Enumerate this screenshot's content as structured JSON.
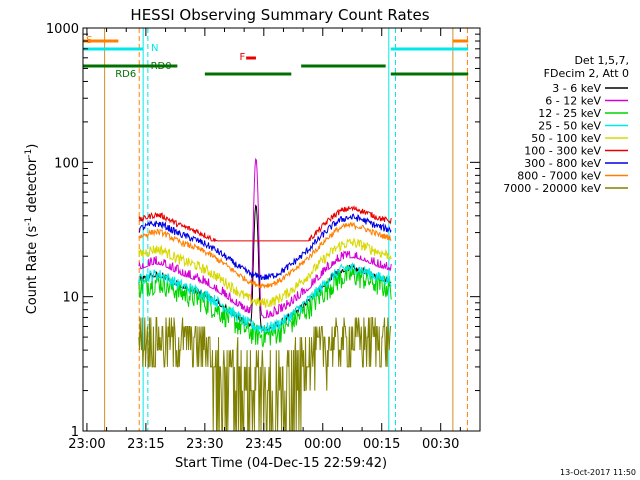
{
  "chart_data": {
    "type": "line",
    "title": "HESSI Observing Summary Count Rates",
    "xlabel": "Start Time (04-Dec-15 22:59:42)",
    "ylabel_main": "Count Rate (s",
    "ylabel_sup1": "-1",
    "ylabel_mid": " detector",
    "ylabel_sup2": "-1",
    "ylabel_end": ")",
    "timestamp": "13-Oct-2017 11:50",
    "y_scale": "log",
    "ylim": [
      1,
      1000
    ],
    "xlim_minutes_after_23_00": [
      -1,
      100
    ],
    "x_ticks": [
      {
        "label": "23:00",
        "t": 0
      },
      {
        "label": "23:15",
        "t": 15
      },
      {
        "label": "23:30",
        "t": 30
      },
      {
        "label": "23:45",
        "t": 45
      },
      {
        "label": "00:00",
        "t": 60
      },
      {
        "label": "00:15",
        "t": 75
      },
      {
        "label": "00:30",
        "t": 90
      }
    ],
    "y_ticks": [
      {
        "label": "1",
        "v": 1
      },
      {
        "label": "10",
        "v": 10
      },
      {
        "label": "100",
        "v": 100
      },
      {
        "label": "1000",
        "v": 1000
      }
    ],
    "legend_header": [
      "Det 1,5,7,",
      "FDecim 2, Att 0"
    ],
    "legend_placement": "right",
    "series": [
      {
        "name": "3 - 6 keV",
        "color": "#000000",
        "base": 12.5,
        "noise": 0.1
      },
      {
        "name": "6 - 12 keV",
        "color": "#d400d4",
        "base": 15.5,
        "noise": 0.16
      },
      {
        "name": "12 - 25 keV",
        "color": "#00d400",
        "base": 11.5,
        "noise": 0.2
      },
      {
        "name": "25 - 50 keV",
        "color": "#00e8e8",
        "base": 13.0,
        "noise": 0.1
      },
      {
        "name": "50 - 100 keV",
        "color": "#d8d800",
        "base": 20.0,
        "noise": 0.09
      },
      {
        "name": "100 - 300 keV",
        "color": "#e80000",
        "base": 36.0,
        "noise": 0.05
      },
      {
        "name": "300 - 800 keV",
        "color": "#0000e0",
        "base": 31.0,
        "noise": 0.06
      },
      {
        "name": "800 - 7000 keV",
        "color": "#ff8000",
        "base": 27.0,
        "noise": 0.05
      },
      {
        "name": "7000 - 20000 keV",
        "color": "#808000",
        "base": 4.5,
        "noise": 0.2
      }
    ],
    "data_window_minutes": [
      13.2,
      77.4
    ],
    "flare_peak": {
      "t": 43.0,
      "value_6_12_keV": 115,
      "value_3_6_keV": 55
    },
    "flag_labels": {
      "saa": "S",
      "night": "N",
      "flare": "F",
      "rd0": "RD0",
      "rd6": "RD6"
    },
    "flag_segments": {
      "saa": [
        [
          -1,
          8
        ],
        [
          93,
          97
        ]
      ],
      "night": [
        [
          -1,
          14.2
        ],
        [
          77.3,
          97
        ]
      ],
      "flare": [
        [
          40.5,
          43
        ]
      ],
      "decimation": [
        [
          -1,
          23
        ],
        [
          30,
          52
        ],
        [
          54.5,
          76
        ],
        [
          77.3,
          97
        ]
      ]
    },
    "vertical_markers": [
      {
        "t": 4.5,
        "style": "solid",
        "color": "#d09020"
      },
      {
        "t": 13.3,
        "style": "dashed",
        "color": "#ff8000"
      },
      {
        "t": 14.3,
        "style": "solid",
        "color": "#00e8e8"
      },
      {
        "t": 15.5,
        "style": "dashed",
        "color": "#00e8e8"
      },
      {
        "t": 76.8,
        "style": "solid",
        "color": "#00e8e8"
      },
      {
        "t": 78.5,
        "style": "dashed",
        "color": "#00e8e8"
      },
      {
        "t": 93.1,
        "style": "solid",
        "color": "#d09020"
      },
      {
        "t": 96.8,
        "style": "dashed",
        "color": "#ff8000"
      }
    ]
  }
}
